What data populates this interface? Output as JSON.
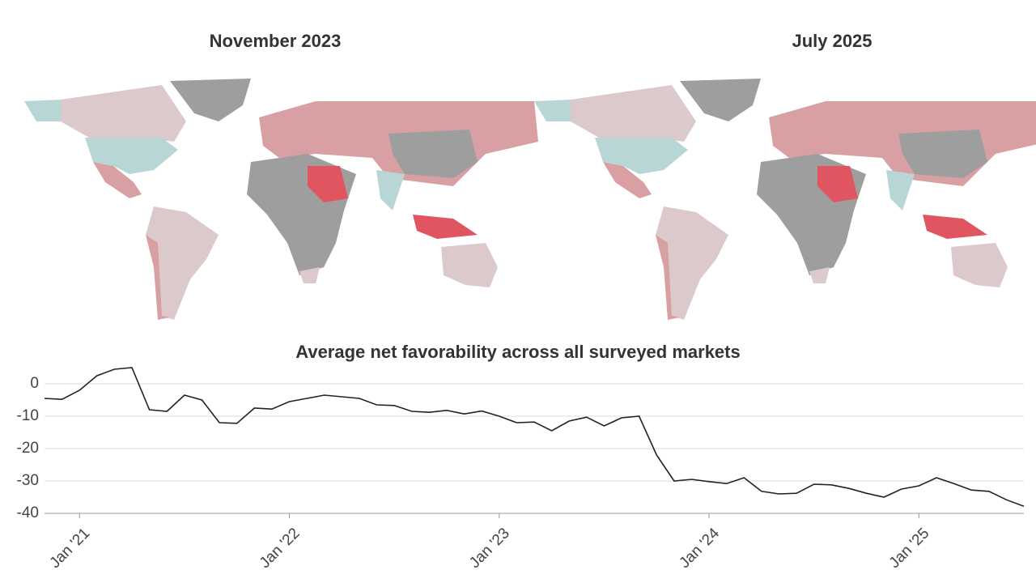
{
  "maps": [
    {
      "title": "November 2023"
    },
    {
      "title": "July 2025"
    }
  ],
  "chart_data": {
    "type": "line",
    "title": "Average net favorability across all surveyed markets",
    "categories": [
      null,
      null,
      "Jan '21",
      null,
      null,
      null,
      null,
      null,
      null,
      null,
      null,
      null,
      null,
      null,
      "Jan '22",
      null,
      null,
      null,
      null,
      null,
      null,
      null,
      null,
      null,
      null,
      null,
      "Jan '23",
      null,
      null,
      null,
      null,
      null,
      null,
      null,
      null,
      null,
      null,
      null,
      "Jan '24",
      null,
      null,
      null,
      null,
      null,
      null,
      null,
      null,
      null,
      null,
      null,
      "Jan '25",
      null,
      null,
      null,
      null,
      null,
      null
    ],
    "series": [
      {
        "name": "Average net favorability",
        "color": "#222222",
        "values": [
          -4.5,
          -4.8,
          -2,
          2.5,
          4.5,
          5,
          -8,
          -8.5,
          -3.5,
          -5,
          -12,
          -12.2,
          -7.5,
          -7.8,
          -5.5,
          -4.5,
          -3.5,
          -4,
          -4.5,
          -6.5,
          -6.7,
          -8.5,
          -8.8,
          -8.2,
          -9.3,
          -8.4,
          -10,
          -12,
          -11.8,
          -14.5,
          -11.5,
          -10.3,
          -13,
          -10.5,
          -10,
          -22,
          -30,
          -29.5,
          -30.2,
          -30.8,
          -29,
          -33.2,
          -34,
          -33.8,
          -31,
          -31.2,
          -32.3,
          -33.8,
          -35,
          -32.5,
          -31.5,
          -29,
          -30.8,
          -32.8,
          -33.2,
          -35.8,
          -37.8
        ]
      }
    ],
    "ylim": [
      -40,
      6
    ],
    "yticks": [
      0,
      -10,
      -20,
      -30,
      -40
    ],
    "grid": true
  }
}
